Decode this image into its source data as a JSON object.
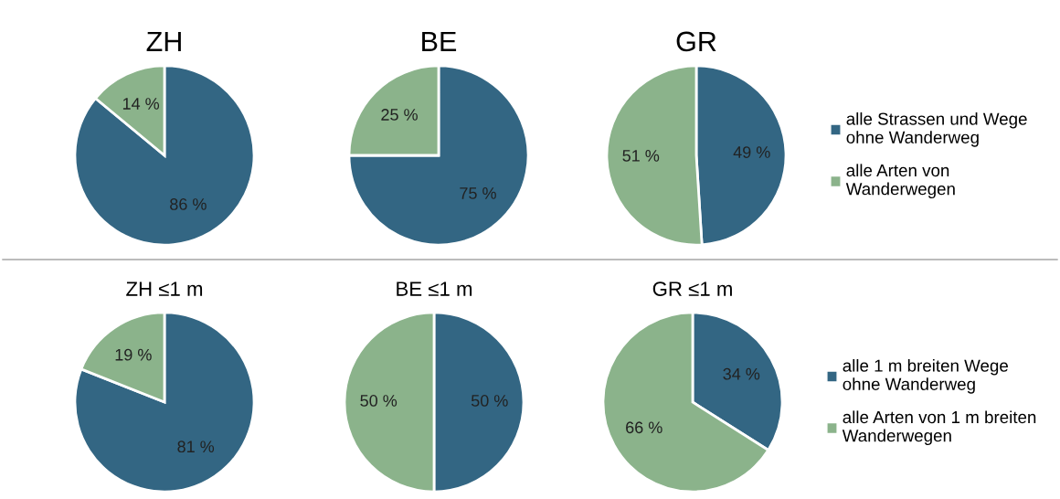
{
  "chart_data": [
    {
      "type": "pie",
      "title": "ZH",
      "categories": [
        null,
        null
      ],
      "values": [
        86,
        14
      ],
      "colors": [
        "#336683",
        "#8bb38b"
      ],
      "value_labels": [
        "86 %",
        "14 %"
      ],
      "legend": false
    },
    {
      "type": "pie",
      "title": "BE",
      "categories": [
        null,
        null
      ],
      "values": [
        75,
        25
      ],
      "colors": [
        "#336683",
        "#8bb38b"
      ],
      "value_labels": [
        "75 %",
        "25 %"
      ],
      "legend": false
    },
    {
      "type": "pie",
      "title": "GR",
      "categories": [
        "alle Strassen und Wege\nohne Wanderweg",
        "alle Arten von\nWanderwegen"
      ],
      "values": [
        49,
        51
      ],
      "colors": [
        "#336683",
        "#8bb38b"
      ],
      "value_labels": [
        "49 %",
        "51 %"
      ],
      "legend": "right"
    },
    {
      "type": "pie",
      "title": "ZH ≤1 m",
      "categories": [
        null,
        null
      ],
      "values": [
        81,
        19
      ],
      "colors": [
        "#336683",
        "#8bb38b"
      ],
      "value_labels": [
        "81 %",
        "19 %"
      ],
      "legend": false
    },
    {
      "type": "pie",
      "title": "BE ≤1 m",
      "categories": [
        null,
        null
      ],
      "values": [
        50,
        50
      ],
      "colors": [
        "#336683",
        "#8bb38b"
      ],
      "value_labels": [
        "50 %",
        "50 %"
      ],
      "legend": false
    },
    {
      "type": "pie",
      "title": "GR ≤1 m",
      "categories": [
        "alle 1 m breiten Wege\nohne Wanderweg",
        "alle Arten von 1 m breiten\nWanderwegen"
      ],
      "values": [
        34,
        66
      ],
      "colors": [
        "#336683",
        "#8bb38b"
      ],
      "value_labels": [
        "34 %",
        "66 %"
      ],
      "legend": "right"
    }
  ]
}
